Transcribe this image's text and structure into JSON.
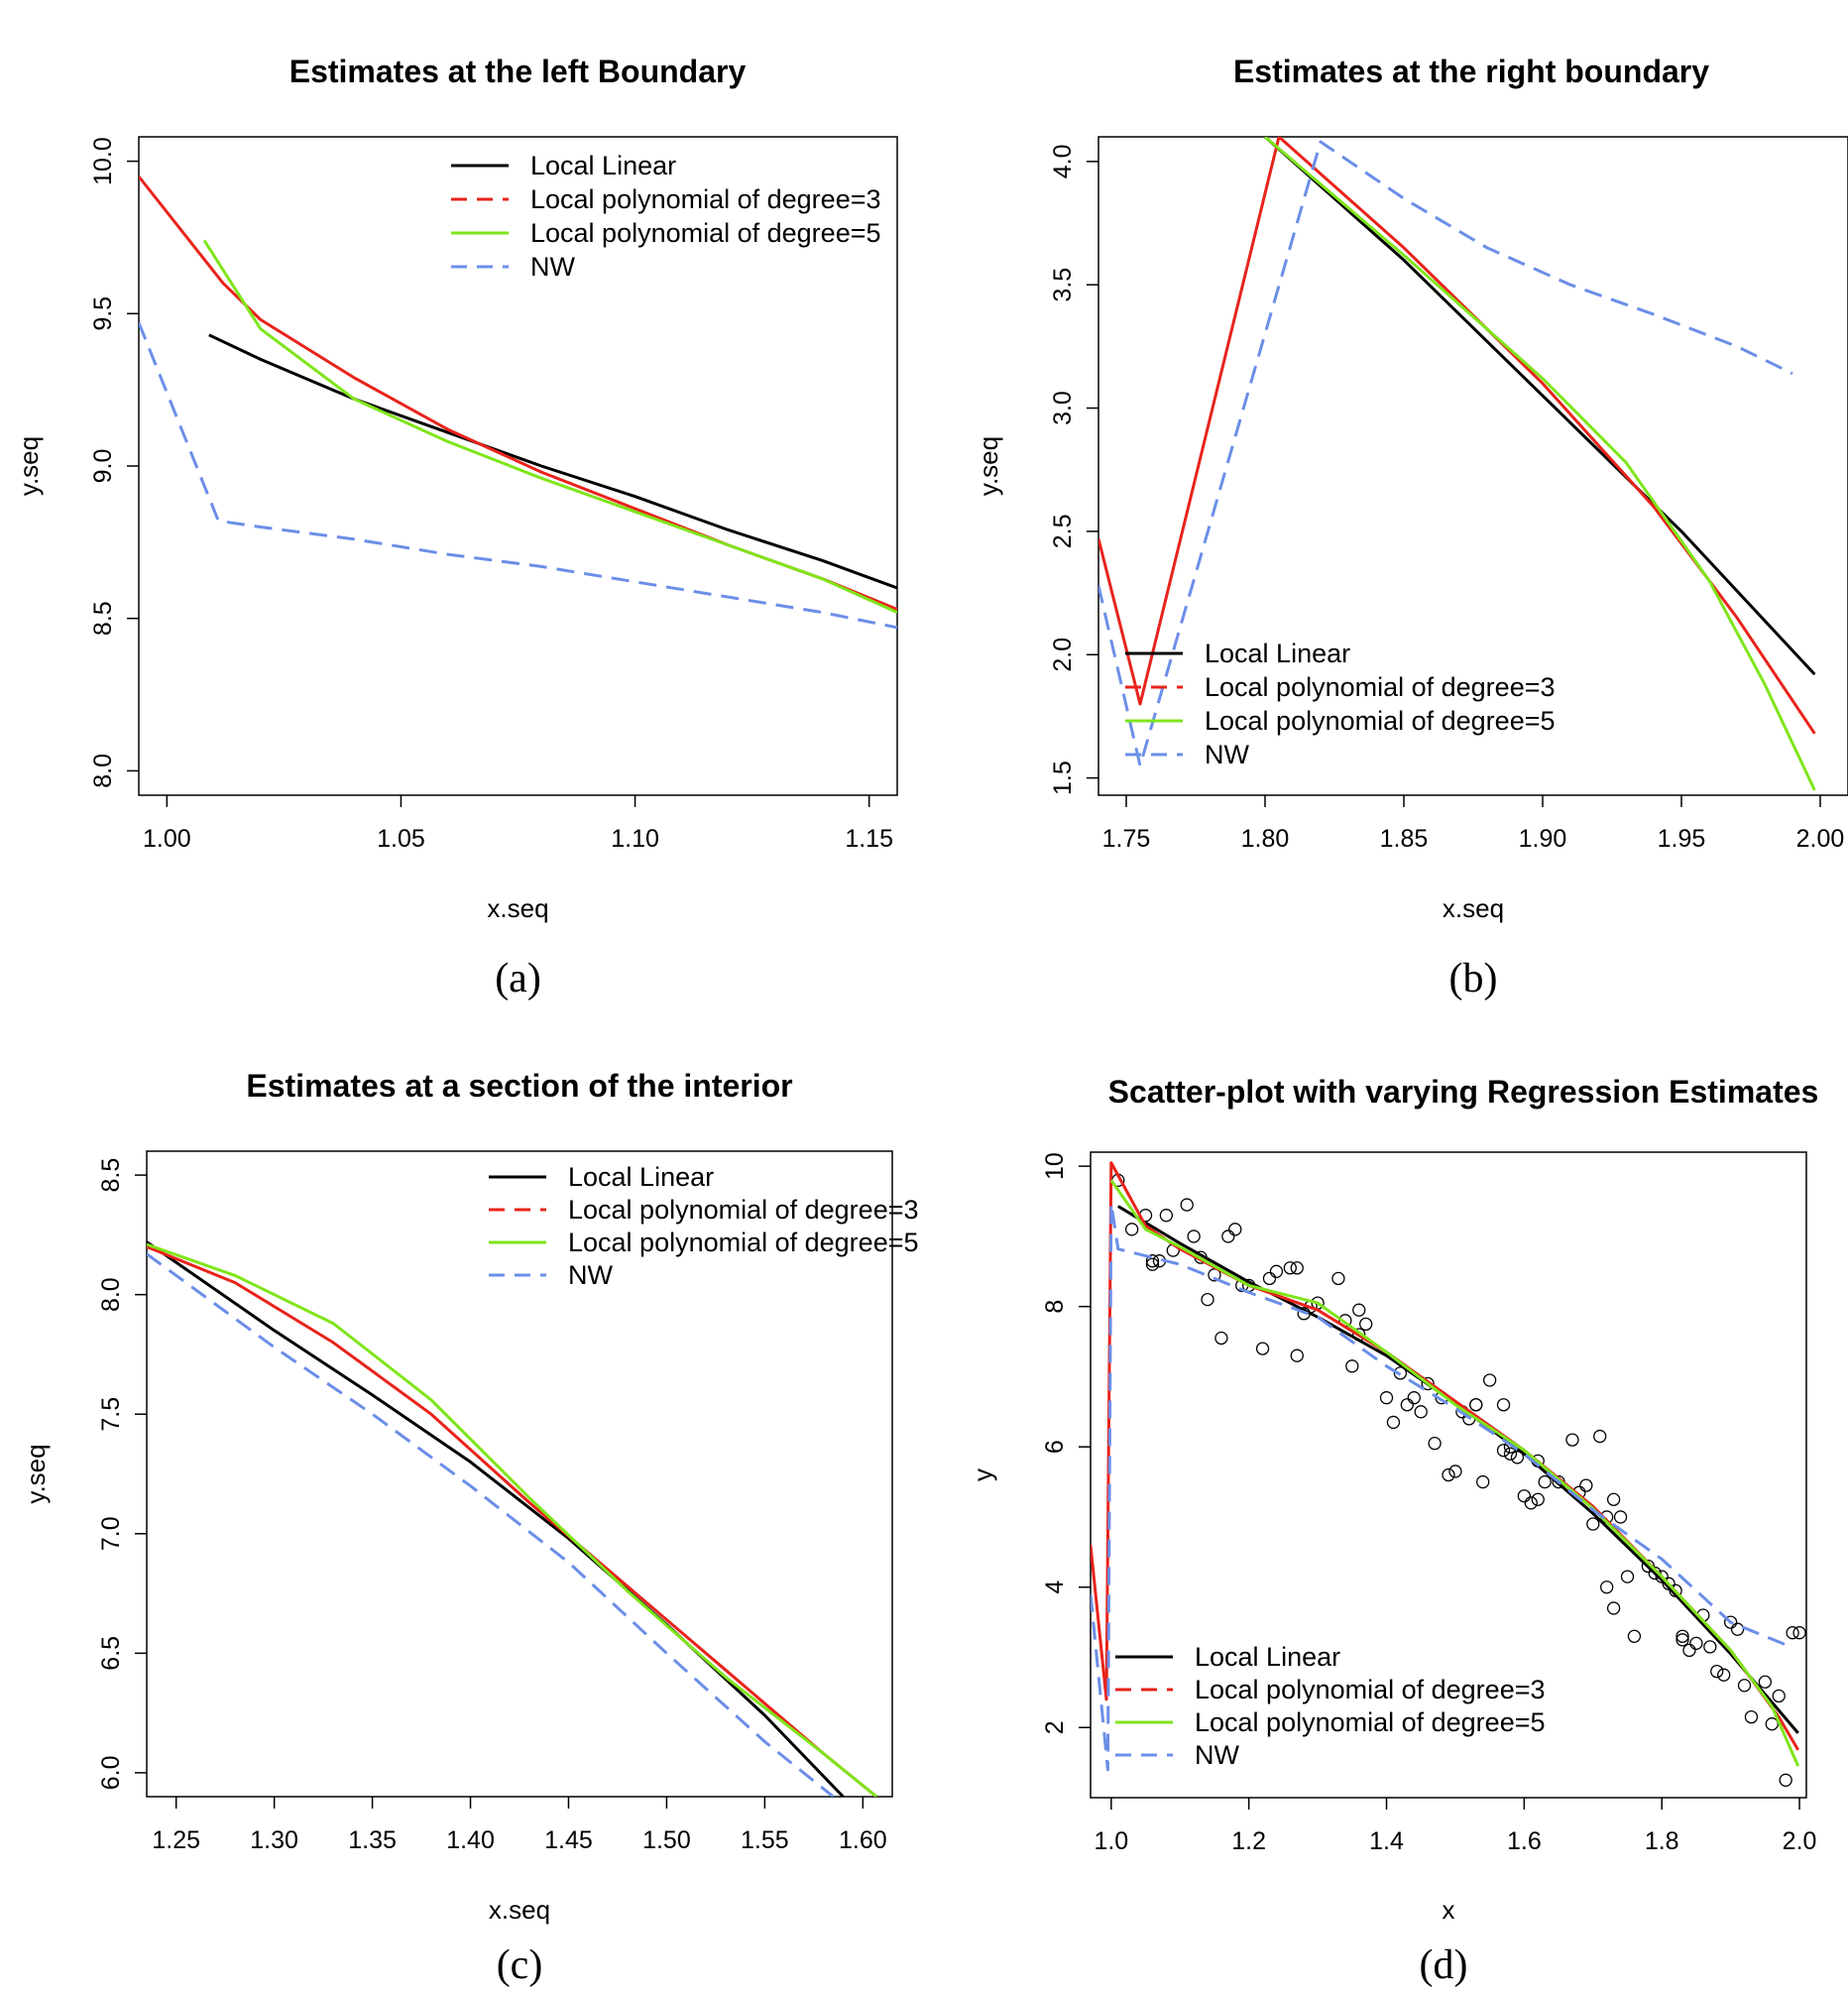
{
  "colors": {
    "local_linear": "#000000",
    "poly3": "#e8231b",
    "poly5": "#7fe51a",
    "nw": "#6b8ee8"
  },
  "chart_data": [
    {
      "type": "line",
      "caption": "(a)",
      "title": "Estimates at the left Boundary",
      "xlabel": "x.seq",
      "ylabel": "y.seq",
      "xlim": [
        0.994,
        1.156
      ],
      "ylim": [
        7.92,
        10.08
      ],
      "xticks": [
        "1.00",
        "1.05",
        "1.10",
        "1.15"
      ],
      "yticks": [
        "8.0",
        "8.5",
        "9.0",
        "9.5",
        "10.0"
      ],
      "legend_position": "top-right",
      "legend": [
        "Local Linear",
        "Local polynomial of degree=3",
        "Local polynomial of degree=5",
        "NW"
      ],
      "series": [
        {
          "name": "Local Linear",
          "x": [
            1.009,
            1.02,
            1.04,
            1.06,
            1.08,
            1.1,
            1.12,
            1.14,
            1.156
          ],
          "y": [
            9.43,
            9.35,
            9.22,
            9.11,
            9.0,
            8.9,
            8.79,
            8.69,
            8.6
          ]
        },
        {
          "name": "Local polynomial of degree=3",
          "x": [
            0.994,
            1.012,
            1.02,
            1.04,
            1.06,
            1.08,
            1.1,
            1.12,
            1.14,
            1.156
          ],
          "y": [
            9.95,
            9.6,
            9.48,
            9.29,
            9.12,
            8.98,
            8.86,
            8.74,
            8.63,
            8.53
          ]
        },
        {
          "name": "Local polynomial of degree=5",
          "x": [
            1.008,
            1.02,
            1.04,
            1.06,
            1.08,
            1.1,
            1.12,
            1.14,
            1.156
          ],
          "y": [
            9.74,
            9.45,
            9.22,
            9.08,
            8.96,
            8.85,
            8.74,
            8.63,
            8.52
          ]
        },
        {
          "name": "NW",
          "x": [
            0.994,
            1.011,
            1.02,
            1.04,
            1.06,
            1.08,
            1.1,
            1.12,
            1.14,
            1.156
          ],
          "y": [
            9.47,
            8.82,
            8.8,
            8.76,
            8.71,
            8.67,
            8.62,
            8.57,
            8.52,
            8.47
          ]
        }
      ]
    },
    {
      "type": "line",
      "caption": "(b)",
      "title": "Estimates at the right boundary",
      "xlabel": "x.seq",
      "ylabel": "y.seq",
      "xlim": [
        1.74,
        2.01
      ],
      "ylim": [
        1.43,
        4.1
      ],
      "xticks": [
        "1.75",
        "1.80",
        "1.85",
        "1.90",
        "1.95",
        "2.00"
      ],
      "yticks": [
        "1.5",
        "2.0",
        "2.5",
        "3.0",
        "3.5",
        "4.0"
      ],
      "legend_position": "bottom-left",
      "legend": [
        "Local Linear",
        "Local polynomial of degree=3",
        "Local polynomial of degree=5",
        "NW"
      ],
      "series": [
        {
          "name": "Local Linear",
          "x": [
            1.8,
            1.85,
            1.9,
            1.95,
            1.998
          ],
          "y": [
            4.1,
            3.6,
            3.05,
            2.5,
            1.92
          ]
        },
        {
          "name": "Local polynomial of degree=3",
          "x": [
            1.74,
            1.755,
            1.805,
            1.85,
            1.9,
            1.94,
            1.97,
            1.998
          ],
          "y": [
            2.47,
            1.8,
            4.1,
            3.65,
            3.1,
            2.6,
            2.15,
            1.68
          ]
        },
        {
          "name": "Local polynomial of degree=5",
          "x": [
            1.8,
            1.85,
            1.9,
            1.93,
            1.96,
            1.98,
            1.998
          ],
          "y": [
            4.1,
            3.62,
            3.12,
            2.78,
            2.3,
            1.88,
            1.45
          ]
        },
        {
          "name": "NW",
          "x": [
            1.74,
            1.755,
            1.82,
            1.85,
            1.88,
            1.91,
            1.94,
            1.97,
            1.99
          ],
          "y": [
            2.28,
            1.55,
            4.08,
            3.85,
            3.65,
            3.5,
            3.38,
            3.25,
            3.14
          ]
        }
      ]
    },
    {
      "type": "line",
      "caption": "(c)",
      "title": "Estimates at a section of the interior",
      "xlabel": "x.seq",
      "ylabel": "y.seq",
      "xlim": [
        1.235,
        1.615
      ],
      "ylim": [
        5.9,
        8.6
      ],
      "xticks": [
        "1.25",
        "1.30",
        "1.35",
        "1.40",
        "1.45",
        "1.50",
        "1.55",
        "1.60"
      ],
      "yticks": [
        "6.0",
        "6.5",
        "7.0",
        "7.5",
        "8.0",
        "8.5"
      ],
      "legend_position": "top-right",
      "legend": [
        "Local Linear",
        "Local polynomial of degree=3",
        "Local polynomial of degree=5",
        "NW"
      ],
      "series": [
        {
          "name": "Local Linear",
          "x": [
            1.235,
            1.3,
            1.35,
            1.4,
            1.45,
            1.5,
            1.55,
            1.59
          ],
          "y": [
            8.22,
            7.85,
            7.58,
            7.3,
            6.98,
            6.62,
            6.24,
            5.9
          ]
        },
        {
          "name": "Local polynomial of degree=3",
          "x": [
            1.235,
            1.28,
            1.33,
            1.38,
            1.43,
            1.48,
            1.53,
            1.58,
            1.607
          ],
          "y": [
            8.2,
            8.05,
            7.8,
            7.5,
            7.13,
            6.78,
            6.43,
            6.08,
            5.9
          ]
        },
        {
          "name": "Local polynomial of degree=5",
          "x": [
            1.235,
            1.28,
            1.33,
            1.38,
            1.43,
            1.48,
            1.53,
            1.58,
            1.607
          ],
          "y": [
            8.21,
            8.08,
            7.88,
            7.56,
            7.15,
            6.76,
            6.4,
            6.08,
            5.9
          ]
        },
        {
          "name": "NW",
          "x": [
            1.235,
            1.3,
            1.35,
            1.4,
            1.45,
            1.5,
            1.55,
            1.585
          ],
          "y": [
            8.17,
            7.78,
            7.5,
            7.2,
            6.88,
            6.5,
            6.13,
            5.9
          ]
        }
      ]
    },
    {
      "type": "scatter",
      "caption": "(d)",
      "title": "Scatter-plot with varying Regression Estimates",
      "xlabel": "x",
      "ylabel": "y",
      "xlim": [
        0.97,
        2.01
      ],
      "ylim": [
        1.0,
        10.2
      ],
      "xticks": [
        "1.0",
        "1.2",
        "1.4",
        "1.6",
        "1.8",
        "2.0"
      ],
      "yticks": [
        "2",
        "4",
        "6",
        "8",
        "10"
      ],
      "legend_position": "bottom-left",
      "legend": [
        "Local Linear",
        "Local polynomial of degree=3",
        "Local polynomial of degree=5",
        "NW"
      ],
      "points": {
        "x": [
          1.01,
          1.03,
          1.05,
          1.06,
          1.07,
          1.08,
          1.09,
          1.11,
          1.12,
          1.13,
          1.14,
          1.15,
          1.16,
          1.17,
          1.18,
          1.19,
          1.2,
          1.22,
          1.23,
          1.24,
          1.26,
          1.27,
          1.28,
          1.29,
          1.3,
          1.33,
          1.34,
          1.35,
          1.36,
          1.37,
          1.4,
          1.41,
          1.42,
          1.43,
          1.45,
          1.46,
          1.47,
          1.48,
          1.49,
          1.5,
          1.51,
          1.52,
          1.53,
          1.54,
          1.55,
          1.57,
          1.58,
          1.58,
          1.59,
          1.6,
          1.61,
          1.62,
          1.63,
          1.65,
          1.67,
          1.69,
          1.7,
          1.71,
          1.72,
          1.72,
          1.73,
          1.73,
          1.75,
          1.76,
          1.78,
          1.79,
          1.8,
          1.81,
          1.82,
          1.83,
          1.84,
          1.85,
          1.86,
          1.87,
          1.88,
          1.89,
          1.9,
          1.91,
          1.92,
          1.93,
          1.95,
          1.96,
          1.97,
          1.98,
          1.99,
          2.0,
          1.62,
          1.57,
          1.44,
          1.36,
          1.27,
          1.06,
          1.53,
          1.74,
          1.68,
          1.83
        ],
        "y": [
          9.8,
          9.1,
          9.3,
          8.6,
          8.65,
          9.3,
          8.8,
          9.45,
          9.0,
          8.7,
          8.1,
          8.45,
          7.55,
          9.0,
          9.1,
          8.3,
          8.3,
          7.4,
          8.4,
          8.5,
          8.55,
          7.3,
          7.9,
          8.0,
          8.05,
          8.4,
          7.8,
          7.15,
          7.6,
          7.75,
          6.7,
          6.35,
          7.05,
          6.6,
          6.5,
          6.9,
          6.05,
          6.7,
          5.6,
          5.65,
          6.5,
          6.4,
          6.6,
          5.5,
          6.95,
          6.6,
          5.9,
          6.0,
          5.85,
          5.3,
          5.2,
          5.8,
          5.5,
          5.5,
          6.1,
          5.45,
          4.9,
          6.15,
          5.0,
          4.0,
          3.7,
          5.25,
          4.15,
          3.3,
          4.3,
          4.2,
          4.15,
          4.05,
          3.95,
          3.25,
          3.1,
          3.2,
          3.6,
          3.15,
          2.8,
          2.75,
          3.5,
          3.4,
          2.6,
          2.15,
          2.65,
          2.05,
          2.45,
          1.25,
          3.35,
          3.35,
          5.25,
          5.95,
          6.7,
          7.95,
          8.55,
          8.65,
          6.6,
          5.0,
          5.35,
          3.3
        ]
      },
      "series": [
        {
          "name": "Local Linear",
          "x": [
            1.01,
            1.1,
            1.2,
            1.3,
            1.4,
            1.5,
            1.6,
            1.7,
            1.8,
            1.9,
            1.998
          ],
          "y": [
            9.43,
            8.9,
            8.35,
            7.85,
            7.3,
            6.62,
            5.9,
            5.05,
            4.1,
            3.05,
            1.92
          ]
        },
        {
          "name": "Local polynomial of degree=3",
          "x": [
            0.97,
            0.993,
            1.0,
            1.05,
            1.1,
            1.2,
            1.3,
            1.4,
            1.5,
            1.6,
            1.7,
            1.8,
            1.9,
            1.97,
            1.998
          ],
          "y": [
            4.6,
            2.4,
            10.05,
            9.15,
            8.82,
            8.3,
            7.95,
            7.35,
            6.65,
            5.95,
            5.15,
            4.15,
            3.1,
            2.15,
            1.68
          ]
        },
        {
          "name": "Local polynomial of degree=5",
          "x": [
            1.0,
            1.05,
            1.1,
            1.2,
            1.3,
            1.4,
            1.5,
            1.6,
            1.7,
            1.8,
            1.9,
            1.96,
            1.998
          ],
          "y": [
            9.8,
            9.1,
            8.85,
            8.3,
            8.05,
            7.35,
            6.6,
            5.95,
            5.12,
            4.15,
            3.1,
            2.3,
            1.45
          ]
        },
        {
          "name": "NW",
          "x": [
            0.97,
            0.995,
            1.0,
            1.01,
            1.1,
            1.2,
            1.3,
            1.4,
            1.5,
            1.6,
            1.7,
            1.8,
            1.9,
            1.99
          ],
          "y": [
            3.9,
            1.4,
            9.47,
            8.82,
            8.6,
            8.2,
            7.85,
            7.15,
            6.55,
            5.9,
            5.1,
            4.4,
            3.5,
            3.14
          ]
        }
      ]
    }
  ]
}
